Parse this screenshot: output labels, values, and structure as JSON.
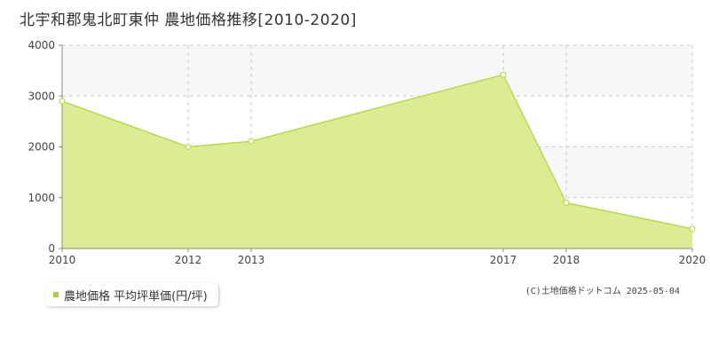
{
  "title": "北宇和郡鬼北町東仲 農地価格推移[2010-2020]",
  "legend": {
    "label": "農地価格 平均坪単価(円/坪)"
  },
  "copyright": "(C)土地価格ドットコム 2025-05-04",
  "colors": {
    "area_fill": "#dcec95",
    "area_line": "#b7dc3c",
    "marker_fill": "#ffffff",
    "legend_swatch": "#aad13a",
    "band": "#f7f7f7",
    "grid": "#cccccc"
  },
  "chart_data": {
    "type": "area",
    "x": [
      "2010",
      "2012",
      "2013",
      "2017",
      "2018",
      "2020"
    ],
    "series": [
      {
        "name": "農地価格 平均坪単価(円/坪)",
        "values": [
          2900,
          2000,
          2110,
          3420,
          900,
          390
        ]
      }
    ],
    "y_ticks": [
      "0",
      "1000",
      "2000",
      "3000",
      "4000"
    ],
    "ylim": [
      0,
      4000
    ],
    "grid": true
  }
}
